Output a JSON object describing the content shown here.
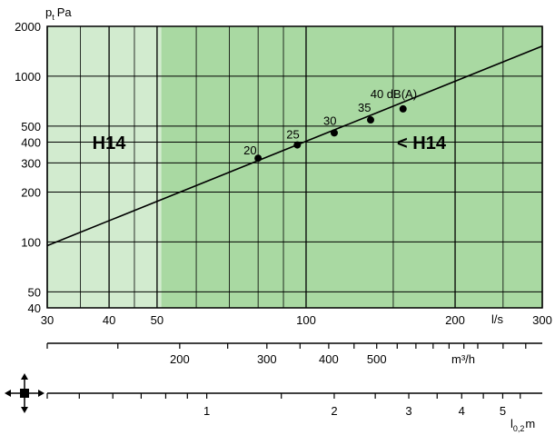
{
  "chart_data": {
    "type": "line",
    "title": "",
    "ylabel": "p",
    "ylabel_subscript": "t",
    "ylabel_unit": "Pa",
    "xlabel_unit": "l/s",
    "scale": {
      "x": "log",
      "y": "log"
    },
    "xlim": [
      30,
      300
    ],
    "ylim": [
      40,
      2000
    ],
    "grid": true,
    "x_ticks": [
      {
        "value": 30,
        "label": "30"
      },
      {
        "value": 40,
        "label": "40"
      },
      {
        "value": 50,
        "label": "50"
      },
      {
        "value": 100,
        "label": "100"
      },
      {
        "value": 200,
        "label": "200"
      },
      {
        "value": 300,
        "label": "300"
      }
    ],
    "x_grid": [
      30,
      35,
      40,
      45,
      50,
      60,
      70,
      80,
      90,
      100,
      150,
      200,
      250,
      300
    ],
    "y_ticks": [
      {
        "value": 40,
        "label": "40"
      },
      {
        "value": 50,
        "label": "50"
      },
      {
        "value": 100,
        "label": "100"
      },
      {
        "value": 200,
        "label": "200"
      },
      {
        "value": 300,
        "label": "300"
      },
      {
        "value": 400,
        "label": "400"
      },
      {
        "value": 500,
        "label": "500"
      },
      {
        "value": 1000,
        "label": "1000"
      },
      {
        "value": 2000,
        "label": "2000"
      }
    ],
    "y_grid": [
      40,
      50,
      100,
      200,
      300,
      400,
      500,
      1000,
      2000
    ],
    "regions": [
      {
        "label": "H14",
        "x_from": 30,
        "x_to": 51,
        "color": "#d2ebcf"
      },
      {
        "label": "< H14",
        "x_from": 51,
        "x_to": 300,
        "color": "#a9d9a2"
      }
    ],
    "series": [
      {
        "values_x": [
          30,
          300
        ],
        "values_y": [
          95,
          1520
        ],
        "color": "#000000"
      }
    ],
    "points": [
      {
        "x": 80,
        "y": 320,
        "label": "20"
      },
      {
        "x": 96,
        "y": 385,
        "label": "25"
      },
      {
        "x": 114,
        "y": 455,
        "label": "30"
      },
      {
        "x": 135,
        "y": 545,
        "label": "35"
      },
      {
        "x": 157,
        "y": 635,
        "label": "40 dB(A)"
      }
    ],
    "secondary_axes": [
      {
        "unit": "m³/h",
        "ticks": [
          {
            "value": 200,
            "label": "200"
          },
          {
            "value": 300,
            "label": "300"
          },
          {
            "value": 400,
            "label": "400"
          },
          {
            "value": 500,
            "label": "500"
          }
        ],
        "minor": [
          150,
          250,
          350,
          450,
          550,
          600,
          650,
          700,
          750,
          800,
          900,
          1000
        ]
      },
      {
        "unit": "l",
        "unit_subscript": "0,2",
        "unit_suffix": "m",
        "ticks": [
          {
            "value": 1,
            "label": "1"
          },
          {
            "value": 2,
            "label": "2"
          },
          {
            "value": 3,
            "label": "3"
          },
          {
            "value": 4,
            "label": "4"
          },
          {
            "value": 5,
            "label": "5"
          }
        ],
        "minor": [
          0.5,
          0.6,
          0.7,
          0.8,
          0.9,
          1.5,
          2.5,
          3.5,
          4.5,
          5.5
        ]
      }
    ]
  }
}
